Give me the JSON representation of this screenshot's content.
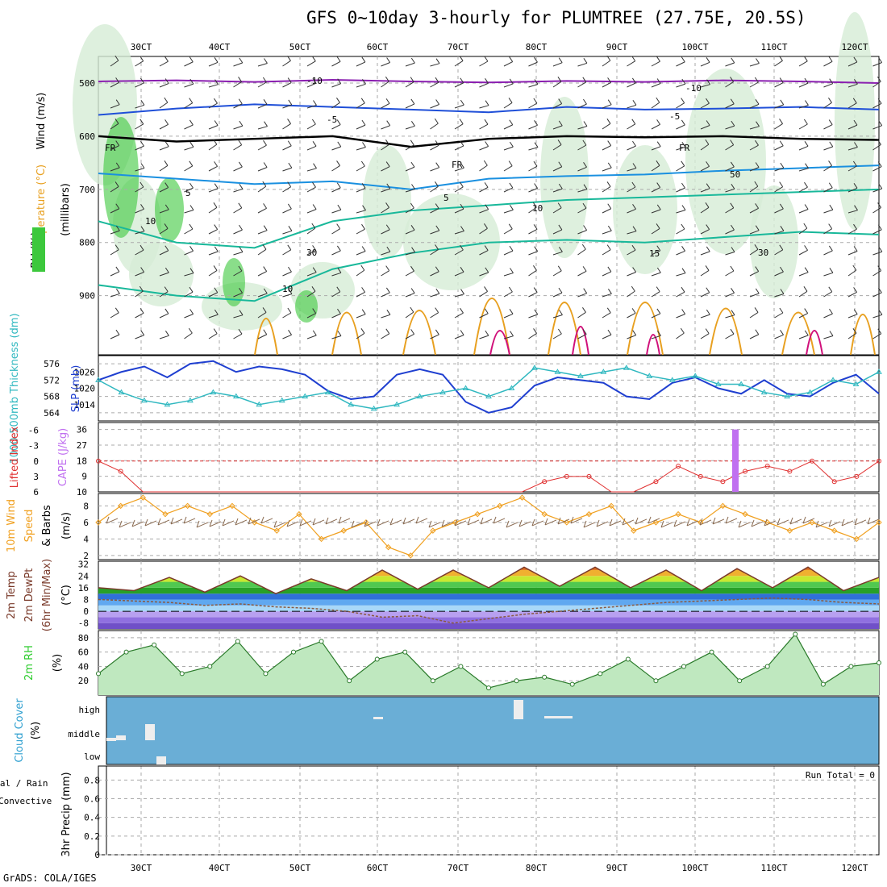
{
  "title": "GFS 0~10day 3-hourly for PLUMTREE (27.75E, 20.5S)",
  "credit": "GrADS: COLA/IGES",
  "colors": {
    "wind_barb": "#333333",
    "rh_green": "#3cc83c",
    "temp_purple": "#8a1fb0",
    "temp_blue": "#1f4fd8",
    "temp_teal": "#18b89a",
    "temp_orange": "#e8a020",
    "temp_magenta": "#d0107a",
    "slp": "#1f3fd0",
    "thickness": "#30b8c0",
    "cape": "#c070f0",
    "lifted_index": "#e03030",
    "wind_speed": "#f0a020",
    "cloud_bg": "#6aaed6",
    "rh2m_green": "#2ecc2e"
  },
  "x_axis": {
    "labels": [
      "30CT",
      "40CT",
      "50CT",
      "60CT",
      "70CT",
      "80CT",
      "90CT",
      "100CT",
      "110CT",
      "120CT"
    ]
  },
  "chart_data": [
    {
      "type": "heatmap",
      "panel": "upper-air",
      "ylabel_parts": [
        "RH (%)",
        "Temperature (°C)",
        "Wind (m/s)"
      ],
      "ylabel2": "(millibars)",
      "y_ticks": [
        500,
        600,
        700,
        800,
        900
      ],
      "ylim": [
        1000,
        450
      ],
      "contour_labels": {
        "freezing": "FR",
        "temps": [
          "-10",
          "-5",
          "5",
          "10",
          "15"
        ],
        "rh": [
          "30",
          "50"
        ]
      },
      "temperature_contours": [
        {
          "level": -10,
          "pressure": [
            497,
            495,
            498,
            494,
            497,
            499,
            496,
            498,
            495,
            497,
            500
          ]
        },
        {
          "level": -5,
          "pressure": [
            560,
            548,
            540,
            545,
            550,
            555,
            545,
            550,
            548,
            545,
            550
          ]
        },
        {
          "level": 0,
          "pressure": [
            600,
            610,
            605,
            600,
            620,
            605,
            600,
            602,
            600,
            605,
            607
          ]
        },
        {
          "level": 5,
          "pressure": [
            670,
            680,
            690,
            685,
            700,
            680,
            675,
            672,
            665,
            660,
            655
          ]
        },
        {
          "level": 10,
          "pressure": [
            760,
            800,
            810,
            760,
            740,
            730,
            720,
            715,
            710,
            705,
            700
          ]
        },
        {
          "level": 15,
          "pressure": [
            880,
            900,
            910,
            850,
            820,
            800,
            795,
            800,
            790,
            780,
            785
          ]
        }
      ]
    },
    {
      "type": "line",
      "panel": "slp-thickness",
      "ylabel": "SLP (mb)",
      "ylabel2": "1000-500mb Thickness (dm)",
      "left_ticks": [
        564,
        568,
        572,
        576
      ],
      "right_ticks": [
        1014,
        1020,
        1026
      ],
      "series": [
        {
          "name": "SLP (mb)",
          "axis": "right",
          "values": [
            1023,
            1026,
            1028,
            1024,
            1029,
            1030,
            1026,
            1028,
            1027,
            1025,
            1019,
            1016,
            1017,
            1025,
            1027,
            1025,
            1015,
            1011,
            1013,
            1021,
            1024,
            1023,
            1022,
            1017,
            1016,
            1022,
            1024,
            1020,
            1018,
            1023,
            1018,
            1017,
            1022,
            1025,
            1018
          ]
        },
        {
          "name": "1000-500mb Thickness (dm)",
          "axis": "left",
          "values": [
            572,
            569,
            567,
            566,
            567,
            569,
            568,
            566,
            567,
            568,
            569,
            566,
            565,
            566,
            568,
            569,
            570,
            568,
            570,
            575,
            574,
            573,
            574,
            575,
            573,
            572,
            573,
            571,
            571,
            569,
            568,
            569,
            572,
            571,
            574
          ]
        }
      ]
    },
    {
      "type": "line",
      "panel": "cape-li",
      "ylabel": "CAPE (J/kg)",
      "ylabel2": "Lifted Index",
      "left_ticks": [
        -6,
        -3,
        0,
        3,
        6
      ],
      "right_ticks": [
        9,
        18,
        27,
        36
      ],
      "series": [
        {
          "name": "Lifted Index",
          "values": [
            0,
            2,
            6,
            6,
            6,
            6,
            6,
            6,
            6,
            6,
            6,
            6,
            6,
            6,
            6,
            6,
            6,
            6,
            6,
            6,
            4,
            3,
            3,
            6,
            6,
            4,
            1,
            3,
            4,
            2,
            1,
            2,
            0,
            4,
            3,
            0
          ]
        },
        {
          "name": "CAPE (J/kg)",
          "values": [
            0,
            0,
            0,
            0,
            0,
            0,
            0,
            0,
            0,
            0,
            0,
            0,
            0,
            0,
            0,
            0,
            0,
            0,
            0,
            0,
            0,
            0,
            0,
            0,
            0,
            0,
            0,
            0,
            36,
            0,
            0,
            0,
            0,
            0,
            0,
            0
          ]
        }
      ]
    },
    {
      "type": "line",
      "panel": "wind10m",
      "ylabel": "10m Wind Speed & Barbs (m/s)",
      "y_ticks": [
        2,
        4,
        6,
        8
      ],
      "series": [
        {
          "name": "Speed",
          "values": [
            6,
            8,
            9,
            7,
            8,
            7,
            8,
            6,
            5,
            7,
            4,
            5,
            6,
            3,
            2,
            5,
            6,
            7,
            8,
            9,
            7,
            6,
            7,
            8,
            5,
            6,
            7,
            6,
            8,
            7,
            6,
            5,
            6,
            5,
            4,
            6
          ]
        }
      ]
    },
    {
      "type": "area",
      "panel": "temp2m",
      "ylabel": "2m Temp 2m DewPt (6hr Min/Max) (°C)",
      "y_ticks": [
        -8,
        0,
        8,
        16,
        24,
        32
      ],
      "series": [
        {
          "name": "2m Temp",
          "values": [
            16,
            14,
            23,
            13,
            24,
            12,
            22,
            14,
            28,
            15,
            28,
            16,
            30,
            17,
            30,
            16,
            28,
            14,
            29,
            16,
            30,
            14,
            23
          ]
        },
        {
          "name": "2m DewPt",
          "values": [
            8,
            7,
            6,
            4,
            5,
            3,
            2,
            0,
            -4,
            -3,
            -8,
            -5,
            -2,
            0,
            2,
            4,
            6,
            7,
            8,
            9,
            8,
            6,
            5
          ]
        }
      ]
    },
    {
      "type": "area",
      "panel": "rh2m",
      "ylabel": "2m RH (%)",
      "y_ticks": [
        20,
        40,
        60,
        80
      ],
      "series": [
        {
          "name": "2m RH",
          "values": [
            30,
            60,
            70,
            30,
            40,
            75,
            30,
            60,
            75,
            20,
            50,
            60,
            20,
            40,
            10,
            20,
            25,
            15,
            30,
            50,
            20,
            40,
            60,
            20,
            40,
            85,
            15,
            40,
            45
          ]
        }
      ]
    },
    {
      "type": "bar",
      "panel": "cloud",
      "ylabel": "Cloud Cover (%)",
      "y_ticks": [
        "low",
        "middle",
        "high"
      ]
    },
    {
      "type": "bar",
      "panel": "precip",
      "ylabel": "3hr Precip (mm)",
      "ylabel_left": [
        "Total / Rain",
        "Convective"
      ],
      "y_ticks": [
        0,
        0.2,
        0.4,
        0.6,
        0.8
      ],
      "annotation": "Run Total = 0",
      "series": [
        {
          "name": "Total / Rain",
          "values": []
        },
        {
          "name": "Convective",
          "values": []
        }
      ]
    }
  ]
}
